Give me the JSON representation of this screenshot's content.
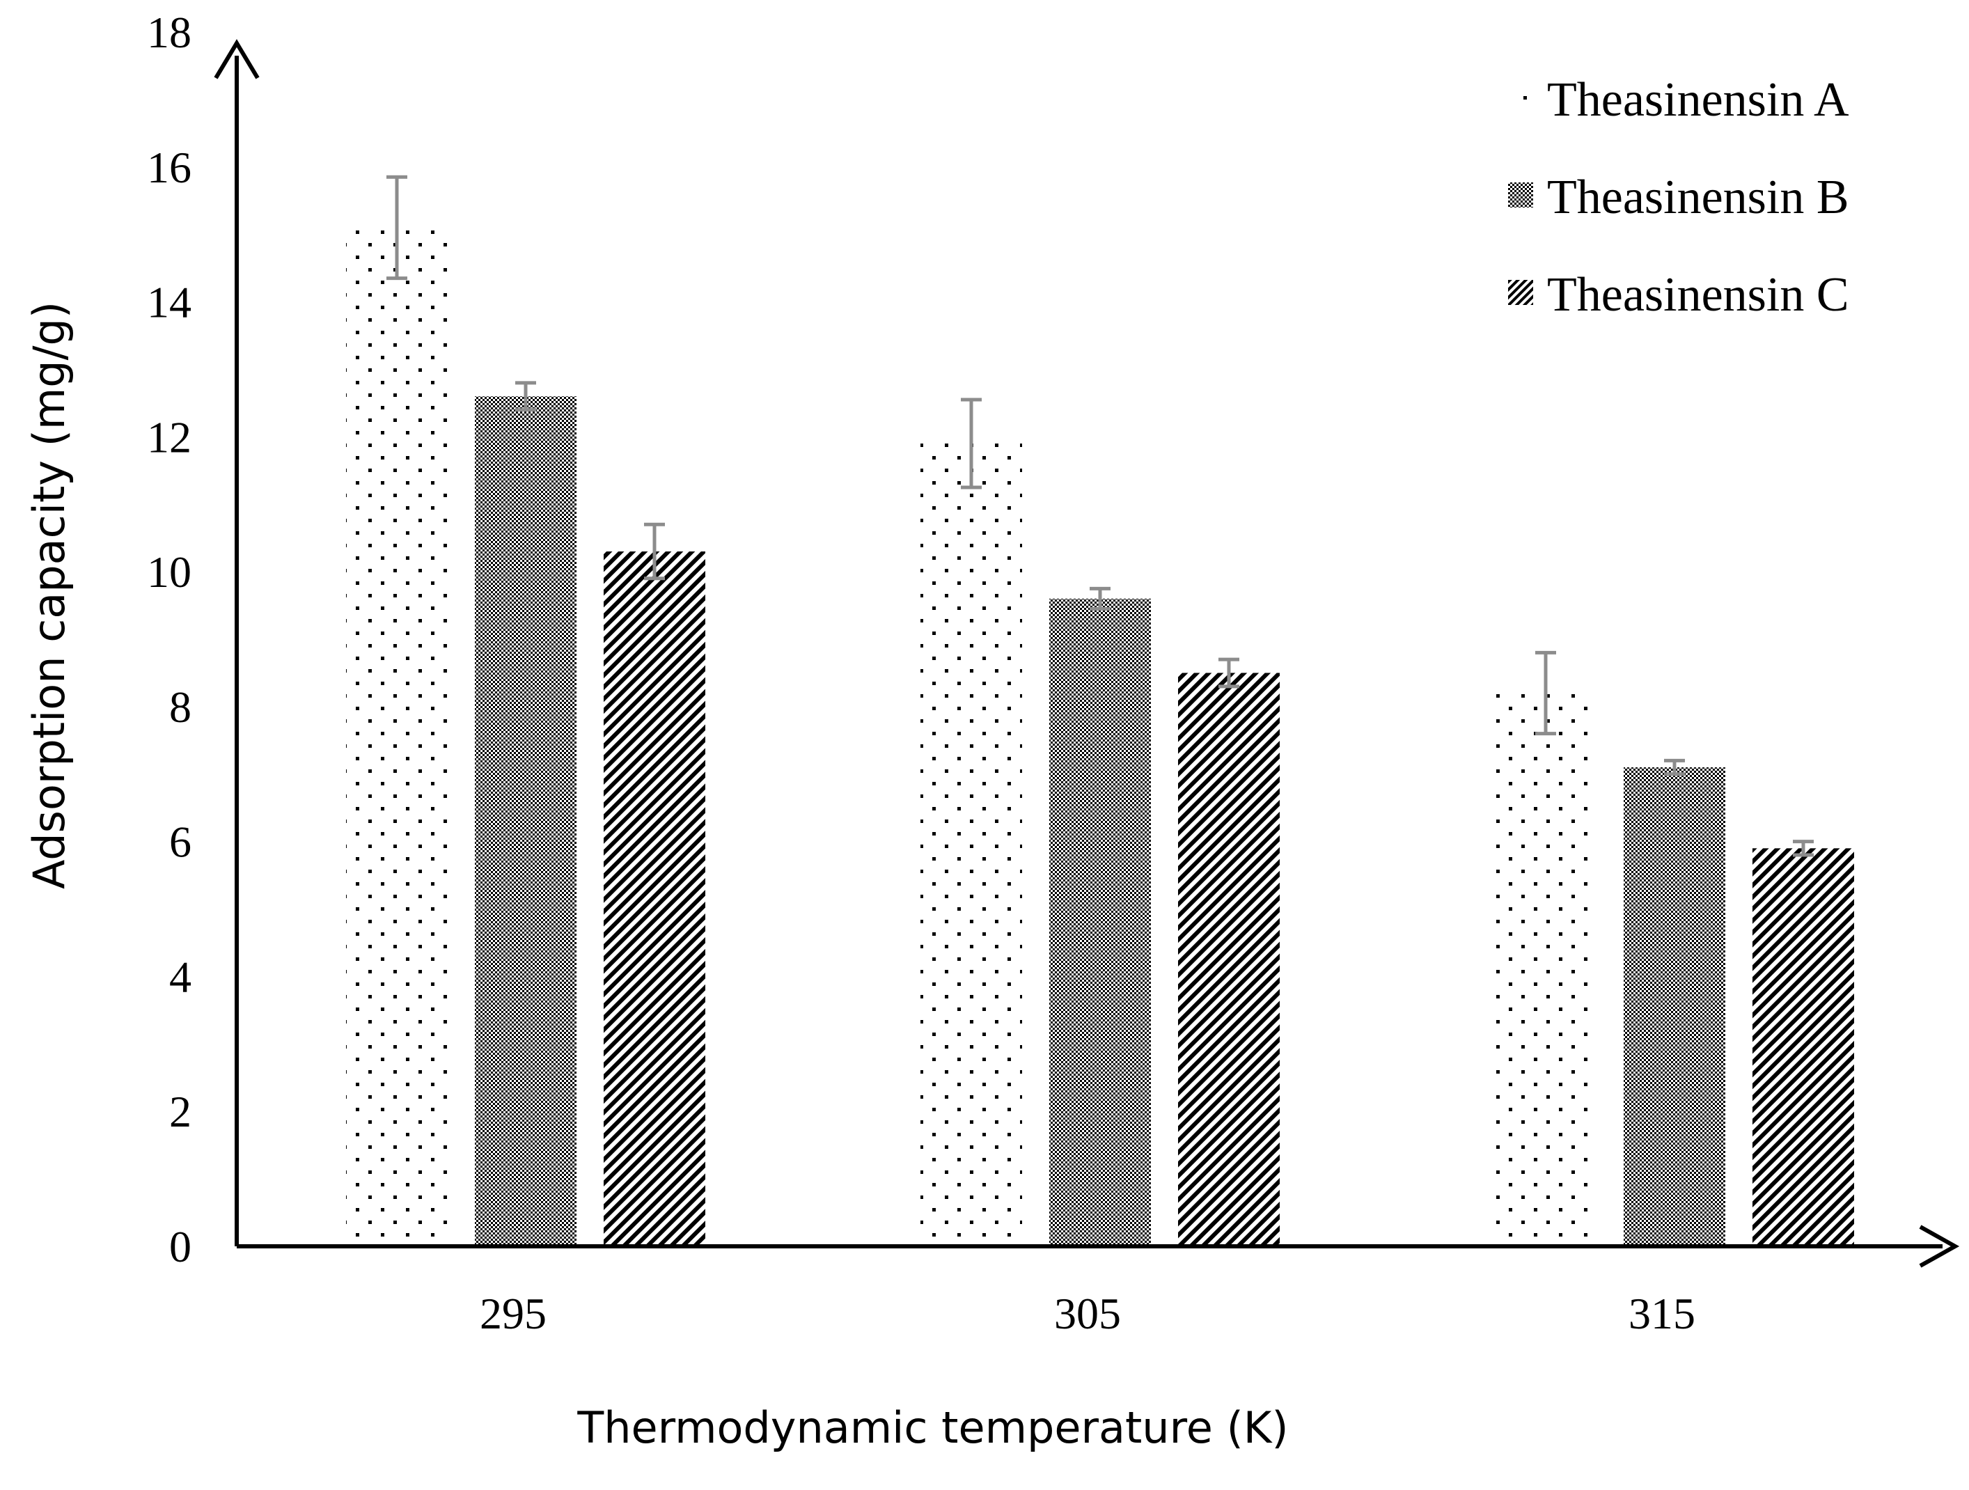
{
  "chart_data": {
    "type": "bar",
    "title": "",
    "xlabel": "Thermodynamic temperature (K)",
    "ylabel": "Adsorption capacity (mg/g)",
    "ylim": [
      0,
      18
    ],
    "yticks": [
      "0",
      "2",
      "4",
      "6",
      "8",
      "10",
      "12",
      "14",
      "16",
      "18"
    ],
    "categories": [
      "295",
      "305",
      "315"
    ],
    "legend_position": "top-right",
    "grid": false,
    "series": [
      {
        "name": "Theasinensin A",
        "pattern": "dots",
        "values": [
          15.1,
          11.9,
          8.2
        ],
        "errors": [
          0.75,
          0.65,
          0.6
        ]
      },
      {
        "name": "Theasinensin B",
        "pattern": "checker",
        "values": [
          12.6,
          9.6,
          7.1
        ],
        "errors": [
          0.2,
          0.15,
          0.1
        ]
      },
      {
        "name": "Theasinensin C",
        "pattern": "diagonal",
        "values": [
          10.3,
          8.5,
          5.9
        ],
        "errors": [
          0.4,
          0.2,
          0.1
        ]
      }
    ],
    "colors": {
      "axis": "#000000",
      "error_bar": "#8c8c8c",
      "pattern_ink": "#000000",
      "background": "#ffffff"
    }
  }
}
